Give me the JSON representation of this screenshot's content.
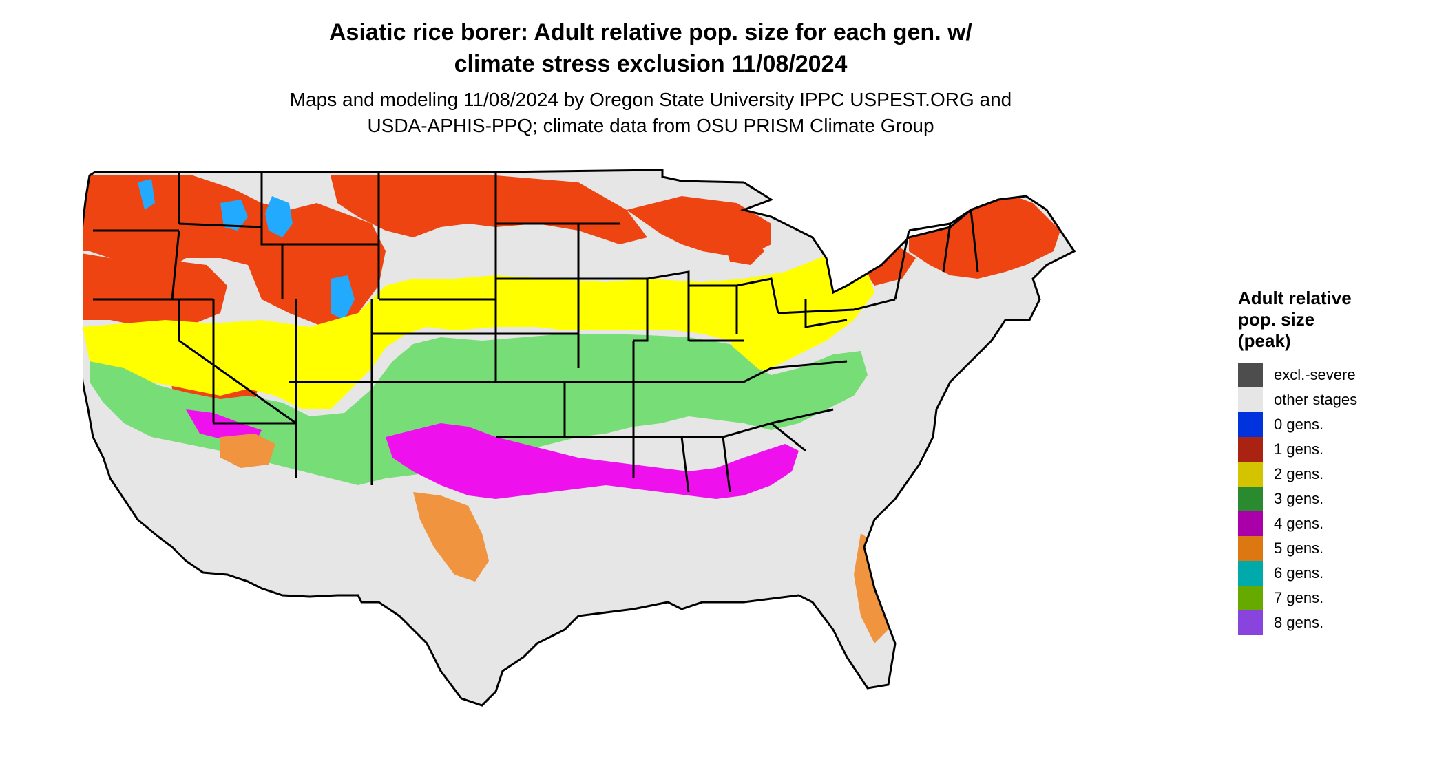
{
  "header": {
    "title_line1": "Asiatic rice borer: Adult relative pop. size for each gen. w/",
    "title_line2": "climate stress exclusion 11/08/2024",
    "subtitle_line1": "Maps and modeling 11/08/2024 by Oregon State University IPPC USPEST.ORG and",
    "subtitle_line2": "USDA-APHIS-PPQ; climate data from OSU PRISM Climate Group"
  },
  "legend": {
    "title_line1": "Adult relative",
    "title_line2": "pop. size",
    "title_line3": "(peak)",
    "items": [
      {
        "label": "excl.-severe",
        "color": "#4d4d4d"
      },
      {
        "label": "other stages",
        "color": "#e6e6e6"
      },
      {
        "label": "0 gens.",
        "color": "#0033dd"
      },
      {
        "label": "1 gens.",
        "color": "#aa2211"
      },
      {
        "label": "2 gens.",
        "color": "#d4c400"
      },
      {
        "label": "3 gens.",
        "color": "#2a8a30"
      },
      {
        "label": "4 gens.",
        "color": "#aa00aa"
      },
      {
        "label": "5 gens.",
        "color": "#dd7711"
      },
      {
        "label": "6 gens.",
        "color": "#00aaaa"
      },
      {
        "label": "7 gens.",
        "color": "#66aa00"
      },
      {
        "label": "8 gens.",
        "color": "#8844dd"
      }
    ]
  },
  "map": {
    "region": "Contiguous United States",
    "palette": {
      "base": "#e6e6e6",
      "one_gen": "#ee4411",
      "two_gen": "#ffff00",
      "three_gen": "#77dd77",
      "four_gen": "#ee11ee",
      "five_gen": "#f09440",
      "zero_gen": "#22aaff",
      "border": "#000000"
    }
  }
}
